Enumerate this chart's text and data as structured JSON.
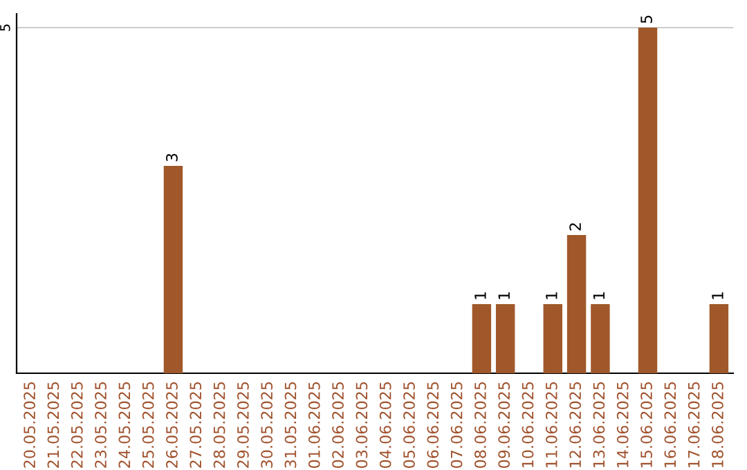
{
  "chart_data": {
    "type": "bar",
    "categories": [
      "20.05.2025",
      "21.05.2025",
      "22.05.2025",
      "23.05.2025",
      "24.05.2025",
      "25.05.2025",
      "26.05.2025",
      "27.05.2025",
      "28.05.2025",
      "29.05.2025",
      "30.05.2025",
      "31.05.2025",
      "01.06.2025",
      "02.06.2025",
      "03.06.2025",
      "04.06.2025",
      "05.06.2025",
      "06.06.2025",
      "07.06.2025",
      "08.06.2025",
      "09.06.2025",
      "10.06.2025",
      "11.06.2025",
      "12.06.2025",
      "13.06.2025",
      "14.06.2025",
      "15.06.2025",
      "16.06.2025",
      "17.06.2025",
      "18.06.2025"
    ],
    "values": [
      0,
      0,
      0,
      0,
      0,
      0,
      3,
      0,
      0,
      0,
      0,
      0,
      0,
      0,
      0,
      0,
      0,
      0,
      0,
      1,
      1,
      0,
      1,
      2,
      1,
      0,
      5,
      0,
      0,
      1
    ],
    "value_labels": [
      null,
      null,
      null,
      null,
      null,
      null,
      "3",
      null,
      null,
      null,
      null,
      null,
      null,
      null,
      null,
      null,
      null,
      null,
      null,
      "1",
      "1",
      null,
      "1",
      "2",
      "1",
      null,
      "5",
      null,
      null,
      "1"
    ],
    "color": "#a0582a",
    "ylim": [
      0,
      5.2
    ],
    "yticks": [
      5
    ],
    "grid": "y"
  }
}
